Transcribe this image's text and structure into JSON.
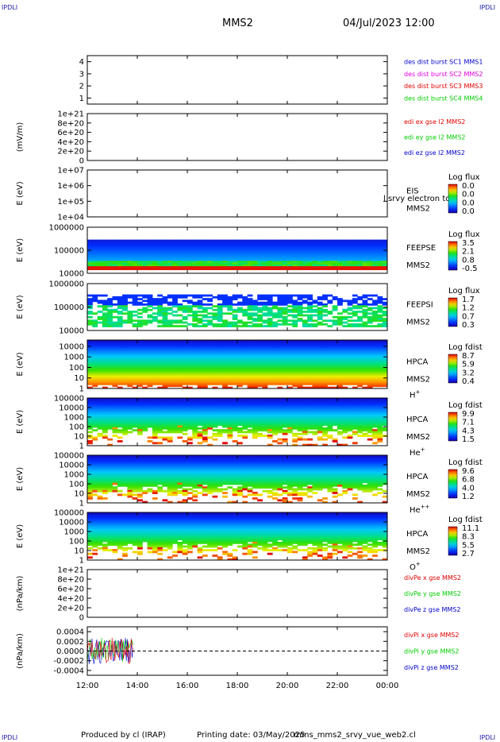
{
  "corner_label": "IPDLI",
  "header": {
    "spacecraft": "MMS2",
    "datetime": "04/Jul/2023 12:00"
  },
  "footer": {
    "produced_by": "Produced by cl (IRAP)",
    "printing_date": "Printing date: 03/May/2025",
    "script_name": "mms_mms2_srvy_vue_web2.cl"
  },
  "time_axis": {
    "ticks": [
      "12:00",
      "14:00",
      "16:00",
      "18:00",
      "20:00",
      "22:00",
      "00:00"
    ]
  },
  "colors": {
    "red": "#e00000",
    "green": "#00cc00",
    "blue": "#0000cc",
    "magenta": "#e000e0"
  },
  "chart_data": [
    {
      "type": "line",
      "name": "des dist burst panel",
      "yticks": [
        "1",
        "2",
        "3",
        "4"
      ],
      "ylim": [
        0.5,
        4.5
      ],
      "legend": [
        {
          "label": "des dist burst SC1 MMS1",
          "color": "#0000cc"
        },
        {
          "label": "des dist burst SC2 MMS2",
          "color": "#e000e0"
        },
        {
          "label": "des dist burst SC3 MMS3",
          "color": "#e00000"
        },
        {
          "label": "des dist burst SC4 MMS4",
          "color": "#00cc00"
        }
      ]
    },
    {
      "type": "line",
      "name": "edi panel",
      "ylabel": "(mV/m)",
      "yticks": [
        "0",
        "2e+20",
        "4e+20",
        "6e+20",
        "8e+20",
        "1e+21"
      ],
      "ylim": [
        0,
        1e+21
      ],
      "legend": [
        {
          "label": "edi ex gse l2 MMS2",
          "color": "#e00000"
        },
        {
          "label": "edi ey gse l2 MMS2",
          "color": "#00cc00"
        },
        {
          "label": "edi ez gse l2 MMS2",
          "color": "#0000cc"
        }
      ]
    },
    {
      "type": "heatmap",
      "name": "EIS panel",
      "ylabel": "E (eV)",
      "yticks": [
        "1e+04",
        "1e+05",
        "1e+06",
        "1e+07"
      ],
      "ylim": [
        10000,
        10000000
      ],
      "instrument": "EIS",
      "subtitle": "MMS2",
      "overlay_text": "l srvy electron to",
      "colorbar": {
        "title": "Log flux",
        "ticks": [
          "0.0",
          "0.0",
          "0.0",
          "0.0"
        ]
      }
    },
    {
      "type": "heatmap",
      "name": "FEEPS electron panel",
      "ylabel": "E (eV)",
      "yticks": [
        "10000",
        "100000",
        "1000000"
      ],
      "ylim": [
        10000,
        1000000
      ],
      "instrument": "FEEPSE",
      "subtitle": "MMS2",
      "colorbar": {
        "title": "Log flux",
        "ticks": [
          "3.5",
          "2.1",
          "0.8",
          "-0.5"
        ]
      }
    },
    {
      "type": "heatmap",
      "name": "FEEPS ion panel",
      "ylabel": "E (eV)",
      "yticks": [
        "10000",
        "100000",
        "1000000"
      ],
      "ylim": [
        10000,
        1000000
      ],
      "instrument": "FEEPSI",
      "subtitle": "MMS2",
      "colorbar": {
        "title": "Log flux",
        "ticks": [
          "1.7",
          "1.2",
          "0.7",
          "0.3"
        ]
      }
    },
    {
      "type": "heatmap",
      "name": "HPCA H+ panel",
      "ylabel": "E (eV)",
      "yticks": [
        "1",
        "10",
        "100",
        "1000",
        "10000"
      ],
      "ylim": [
        1,
        40000
      ],
      "instrument": "HPCA",
      "subtitle": "MMS2",
      "species": "H",
      "species_charge": "+",
      "colorbar": {
        "title": "Log fdist",
        "ticks": [
          "8.7",
          "5.9",
          "3.2",
          "0.4"
        ]
      }
    },
    {
      "type": "heatmap",
      "name": "HPCA He+ panel",
      "ylabel": "E (eV)",
      "yticks": [
        "1",
        "10",
        "100",
        "1000",
        "10000",
        "100000"
      ],
      "ylim": [
        1,
        100000
      ],
      "instrument": "HPCA",
      "subtitle": "MMS2",
      "species": "He",
      "species_charge": "+",
      "colorbar": {
        "title": "Log fdist",
        "ticks": [
          "9.9",
          "7.1",
          "4.3",
          "1.5"
        ]
      }
    },
    {
      "type": "heatmap",
      "name": "HPCA He++ panel",
      "ylabel": "E (eV)",
      "yticks": [
        "1",
        "10",
        "100",
        "1000",
        "10000",
        "100000"
      ],
      "ylim": [
        1,
        100000
      ],
      "instrument": "HPCA",
      "subtitle": "MMS2",
      "species": "He",
      "species_charge": "++",
      "colorbar": {
        "title": "Log fdist",
        "ticks": [
          "9.6",
          "6.8",
          "4.0",
          "1.2"
        ]
      }
    },
    {
      "type": "heatmap",
      "name": "HPCA O+ panel",
      "ylabel": "E (eV)",
      "yticks": [
        "1",
        "10",
        "100",
        "1000",
        "10000",
        "100000"
      ],
      "ylim": [
        1,
        100000
      ],
      "instrument": "HPCA",
      "subtitle": "MMS2",
      "species": "O",
      "species_charge": "+",
      "colorbar": {
        "title": "Log fdist",
        "ticks": [
          "11.1",
          "8.3",
          "5.5",
          "2.7"
        ]
      }
    },
    {
      "type": "line",
      "name": "divPe panel",
      "ylabel": "(nPa/km)",
      "yticks": [
        "0",
        "2e+20",
        "4e+20",
        "6e+20",
        "8e+20",
        "1e+21"
      ],
      "ylim": [
        0,
        1e+21
      ],
      "legend": [
        {
          "label": "divPe x gse MMS2",
          "color": "#e00000"
        },
        {
          "label": "divPe y gse MMS2",
          "color": "#00cc00"
        },
        {
          "label": "divPe z gse MMS2",
          "color": "#0000cc"
        }
      ]
    },
    {
      "type": "line",
      "name": "divPi panel",
      "ylabel": "(nPa/km)",
      "yticks": [
        "-0.0004",
        "-0.0002",
        "0.0000",
        "0.0002",
        "0.0004"
      ],
      "ylim": [
        -0.0005,
        0.0005
      ],
      "data_time_range": [
        "12:00",
        "13:50"
      ],
      "legend": [
        {
          "label": "divPi x gse MMS2",
          "color": "#e00000"
        },
        {
          "label": "divPi y gse MMS2",
          "color": "#00cc00"
        },
        {
          "label": "divPi z gse MMS2",
          "color": "#0000cc"
        }
      ]
    }
  ]
}
